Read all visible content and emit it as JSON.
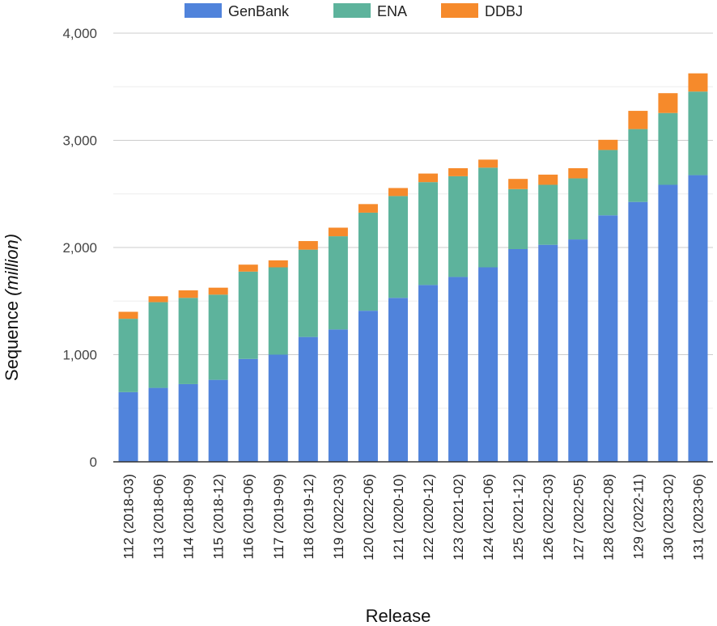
{
  "chart_data": {
    "type": "bar",
    "stacked": true,
    "title": "",
    "xlabel": "Release",
    "ylabel_main": "Sequence ",
    "ylabel_italic": "(million)",
    "ylim": [
      0,
      4000
    ],
    "yticks": [
      0,
      1000,
      2000,
      3000,
      4000
    ],
    "ytick_labels": [
      "0",
      "1,000",
      "2,000",
      "3,000",
      "4,000"
    ],
    "gridlines": true,
    "legend_position": "top",
    "categories": [
      "112 (2018-03)",
      "113 (2018-06)",
      "114 (2018-09)",
      "115 (2018-12)",
      "116 (2019-06)",
      "117 (2019-09)",
      "118 (2019-12)",
      "119 (2022-03)",
      "120 (2022-06)",
      "121 (2020-10)",
      "122 (2020-12)",
      "123 (2021-02)",
      "124 (2021-06)",
      "125 (2021-12)",
      "126 (2022-03)",
      "127 (2022-05)",
      "128 (2022-08)",
      "129 (2022-11)",
      "130 (2023-02)",
      "131 (2023-06)"
    ],
    "series": [
      {
        "name": "GenBank",
        "color": "#5083db",
        "values": [
          650,
          690,
          725,
          765,
          960,
          1000,
          1165,
          1235,
          1410,
          1530,
          1650,
          1725,
          1815,
          1985,
          2025,
          2075,
          2300,
          2425,
          2585,
          2675
        ]
      },
      {
        "name": "ENA",
        "color": "#5db39c",
        "values": [
          685,
          800,
          805,
          795,
          815,
          815,
          815,
          870,
          915,
          950,
          960,
          940,
          930,
          560,
          560,
          570,
          610,
          680,
          670,
          780
        ]
      },
      {
        "name": "DDBJ",
        "color": "#f68a2b",
        "values": [
          65,
          55,
          70,
          65,
          65,
          65,
          80,
          80,
          80,
          75,
          80,
          75,
          75,
          95,
          95,
          95,
          95,
          170,
          185,
          170
        ]
      }
    ]
  }
}
